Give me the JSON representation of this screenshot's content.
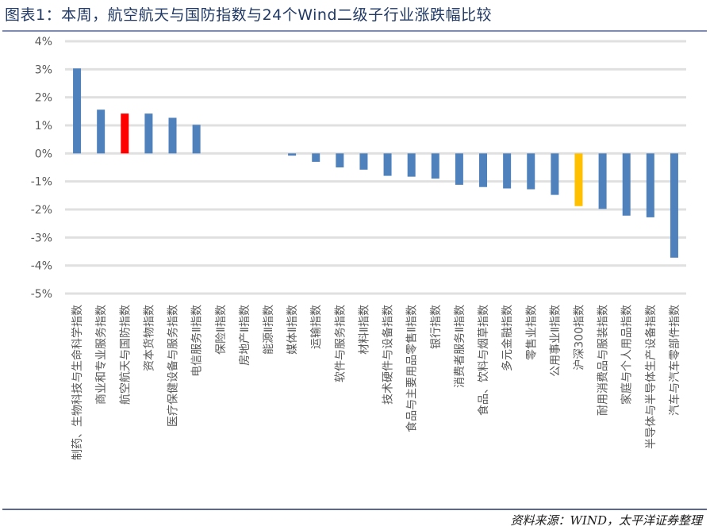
{
  "header": {
    "title": "图表1：本周，航空航天与国防指数与24个Wind二级子行业涨跌幅比较"
  },
  "footer": {
    "source": "资料来源：WIND，太平洋证券整理"
  },
  "colors": {
    "default_bar": "#4f81bd",
    "highlight_bar": "#ff0000",
    "benchmark_bar": "#ffc000",
    "grid": "#e0e0e0",
    "axis_text": "#595959",
    "title": "#1f3864"
  },
  "chart_data": {
    "type": "bar",
    "title": "本周，航空航天与国防指数与24个Wind二级子行业涨跌幅比较",
    "xlabel": "",
    "ylabel": "",
    "ylim": [
      -0.05,
      0.04
    ],
    "yticks": [
      "4%",
      "3%",
      "2%",
      "1%",
      "0%",
      "-1%",
      "-2%",
      "-3%",
      "-4%",
      "-5%"
    ],
    "grid": true,
    "legend": null,
    "categories": [
      "制药、生物科技与生命科学指数",
      "商业和专业服务指数",
      "航空航天与国防指数",
      "资本货物指数",
      "医疗保健设备与服务指数",
      "电信服务Ⅱ指数",
      "保险Ⅱ指数",
      "房地产Ⅱ指数",
      "能源Ⅱ指数",
      "媒体Ⅱ指数",
      "运输指数",
      "软件与服务指数",
      "材料Ⅱ指数",
      "技术硬件与设备指数",
      "食品与主要用品零售Ⅱ指数",
      "银行指数",
      "消费者服务Ⅱ指数",
      "食品、饮料与烟草指数",
      "多元金融指数",
      "零售业指数",
      "公用事业Ⅱ指数",
      "沪深300指数",
      "耐用消费品与服装指数",
      "家庭与个人用品指数",
      "半导体与半导体生产设备指数",
      "汽车与汽车零部件指数"
    ],
    "values": [
      0.0303,
      0.0156,
      0.0142,
      0.0142,
      0.0127,
      0.0102,
      0.0,
      0.0,
      0.0,
      -0.0008,
      -0.003,
      -0.005,
      -0.0058,
      -0.008,
      -0.0083,
      -0.009,
      -0.0112,
      -0.012,
      -0.0125,
      -0.0128,
      -0.0148,
      -0.0188,
      -0.0198,
      -0.0222,
      -0.0228,
      -0.0372
    ],
    "highlights": {
      "航空航天与国防指数": "#ff0000",
      "沪深300指数": "#ffc000"
    }
  }
}
